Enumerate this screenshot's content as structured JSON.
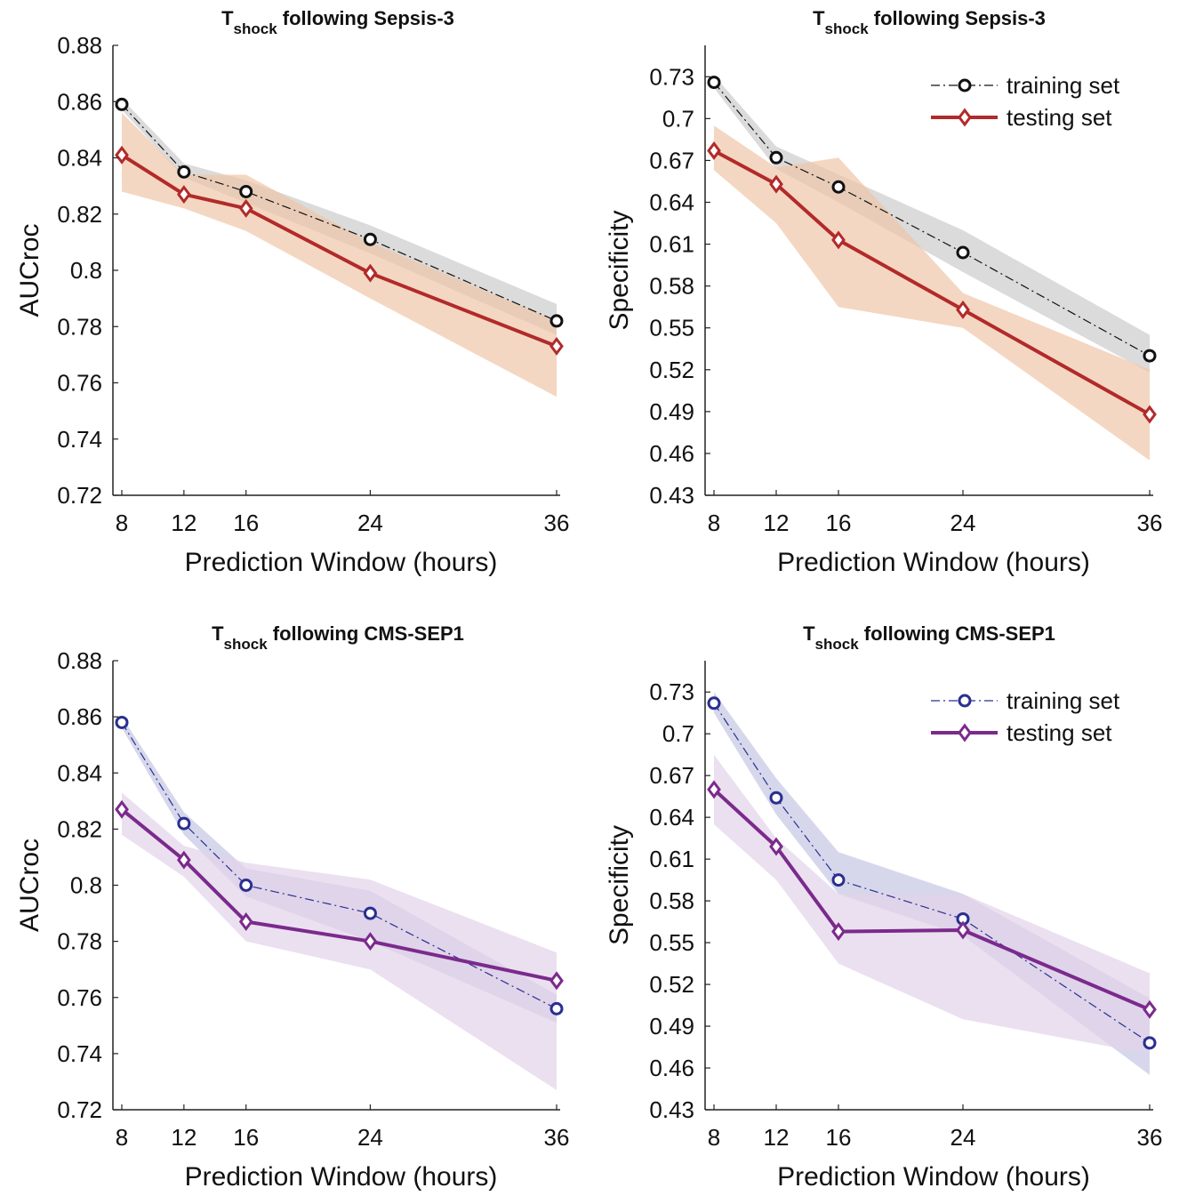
{
  "chart_data": [
    {
      "type": "line",
      "title": {
        "main": "T",
        "sub": "shock",
        "rest": " following Sepsis-3"
      },
      "xlabel": "Prediction Window (hours)",
      "ylabel": "AUCroc",
      "x": [
        8,
        12,
        16,
        24,
        36
      ],
      "xticks": [
        "8",
        "12",
        "16",
        "24",
        "36"
      ],
      "xlim": [
        8,
        36
      ],
      "ylim": [
        0.72,
        0.88
      ],
      "yticks": [
        0.72,
        0.74,
        0.76,
        0.78,
        0.8,
        0.82,
        0.84,
        0.86,
        0.88
      ],
      "yticklabels": [
        "0.72",
        "0.74",
        "0.76",
        "0.78",
        "0.8",
        "0.82",
        "0.84",
        "0.86",
        "0.88"
      ],
      "legend": null,
      "series": [
        {
          "name": "training set",
          "marker": "circle",
          "style": "dashdot",
          "color": "#111111",
          "band": "#cfcfcf",
          "values": [
            0.859,
            0.835,
            0.828,
            0.811,
            0.782
          ],
          "lower": [
            0.857,
            0.833,
            0.824,
            0.806,
            0.777
          ],
          "upper": [
            0.861,
            0.838,
            0.832,
            0.816,
            0.788
          ]
        },
        {
          "name": "testing set",
          "marker": "diamond",
          "style": "solid",
          "color": "#b22a2a",
          "band": "#efc6a8",
          "values": [
            0.841,
            0.827,
            0.822,
            0.799,
            0.773
          ],
          "lower": [
            0.828,
            0.822,
            0.814,
            0.79,
            0.755
          ],
          "upper": [
            0.856,
            0.834,
            0.834,
            0.81,
            0.782
          ]
        }
      ]
    },
    {
      "type": "line",
      "title": {
        "main": "T",
        "sub": "shock",
        "rest": " following Sepsis-3"
      },
      "xlabel": "Prediction Window (hours)",
      "ylabel": "Specificity",
      "x": [
        8,
        12,
        16,
        24,
        36
      ],
      "xticks": [
        "8",
        "12",
        "16",
        "24",
        "36"
      ],
      "xlim": [
        8,
        36
      ],
      "ylim": [
        0.43,
        0.7525
      ],
      "yticks": [
        0.43,
        0.46,
        0.49,
        0.52,
        0.55,
        0.58,
        0.61,
        0.64,
        0.67,
        0.7,
        0.73
      ],
      "yticklabels": [
        "0.43",
        "0.46",
        "0.49",
        "0.52",
        "0.55",
        "0.58",
        "0.61",
        "0.64",
        "0.67",
        "0.7",
        "0.73"
      ],
      "legend": "top-right",
      "series": [
        {
          "name": "training set",
          "marker": "circle",
          "style": "dashdot",
          "color": "#111111",
          "band": "#cfcfcf",
          "values": [
            0.726,
            0.672,
            0.651,
            0.604,
            0.53
          ],
          "lower": [
            0.722,
            0.664,
            0.64,
            0.59,
            0.518
          ],
          "upper": [
            0.731,
            0.68,
            0.66,
            0.62,
            0.545
          ]
        },
        {
          "name": "testing set",
          "marker": "diamond",
          "style": "solid",
          "color": "#b22a2a",
          "band": "#efc6a8",
          "values": [
            0.677,
            0.653,
            0.613,
            0.563,
            0.488
          ],
          "lower": [
            0.663,
            0.625,
            0.565,
            0.55,
            0.455
          ],
          "upper": [
            0.695,
            0.665,
            0.672,
            0.575,
            0.52
          ]
        }
      ]
    },
    {
      "type": "line",
      "title": {
        "main": "T",
        "sub": "shock",
        "rest": " following CMS-SEP1"
      },
      "xlabel": "Prediction Window (hours)",
      "ylabel": "AUCroc",
      "x": [
        8,
        12,
        16,
        24,
        36
      ],
      "xticks": [
        "8",
        "12",
        "16",
        "24",
        "36"
      ],
      "xlim": [
        8,
        36
      ],
      "ylim": [
        0.72,
        0.88
      ],
      "yticks": [
        0.72,
        0.74,
        0.76,
        0.78,
        0.8,
        0.82,
        0.84,
        0.86,
        0.88
      ],
      "yticklabels": [
        "0.72",
        "0.74",
        "0.76",
        "0.78",
        "0.8",
        "0.82",
        "0.84",
        "0.86",
        "0.88"
      ],
      "legend": null,
      "series": [
        {
          "name": "training set",
          "marker": "circle",
          "style": "dashdot",
          "color": "#2a2f8f",
          "band": "#c9c9e6",
          "values": [
            0.858,
            0.822,
            0.8,
            0.79,
            0.756
          ],
          "lower": [
            0.856,
            0.818,
            0.796,
            0.78,
            0.751
          ],
          "upper": [
            0.86,
            0.826,
            0.806,
            0.798,
            0.761
          ]
        },
        {
          "name": "testing set",
          "marker": "diamond",
          "style": "solid",
          "color": "#7b2a8c",
          "band": "#e2d3ea",
          "values": [
            0.827,
            0.809,
            0.787,
            0.78,
            0.766
          ],
          "lower": [
            0.818,
            0.803,
            0.78,
            0.77,
            0.727
          ],
          "upper": [
            0.833,
            0.814,
            0.808,
            0.802,
            0.776
          ]
        }
      ]
    },
    {
      "type": "line",
      "title": {
        "main": "T",
        "sub": "shock",
        "rest": " following CMS-SEP1"
      },
      "xlabel": "Prediction Window (hours)",
      "ylabel": "Specificity",
      "x": [
        8,
        12,
        16,
        24,
        36
      ],
      "xticks": [
        "8",
        "12",
        "16",
        "24",
        "36"
      ],
      "xlim": [
        8,
        36
      ],
      "ylim": [
        0.43,
        0.7525
      ],
      "yticks": [
        0.43,
        0.46,
        0.49,
        0.52,
        0.55,
        0.58,
        0.61,
        0.64,
        0.67,
        0.7,
        0.73
      ],
      "yticklabels": [
        "0.43",
        "0.46",
        "0.49",
        "0.52",
        "0.55",
        "0.58",
        "0.61",
        "0.64",
        "0.67",
        "0.7",
        "0.73"
      ],
      "legend": "top-right",
      "series": [
        {
          "name": "training set",
          "marker": "circle",
          "style": "dashdot",
          "color": "#2a2f8f",
          "band": "#c9c9e6",
          "values": [
            0.722,
            0.654,
            0.595,
            0.567,
            0.478
          ],
          "lower": [
            0.715,
            0.642,
            0.585,
            0.555,
            0.455
          ],
          "upper": [
            0.73,
            0.668,
            0.615,
            0.585,
            0.51
          ]
        },
        {
          "name": "testing set",
          "marker": "diamond",
          "style": "solid",
          "color": "#7b2a8c",
          "band": "#e2d3ea",
          "values": [
            0.66,
            0.619,
            0.558,
            0.559,
            0.502
          ],
          "lower": [
            0.635,
            0.595,
            0.535,
            0.495,
            0.47
          ],
          "upper": [
            0.685,
            0.625,
            0.585,
            0.585,
            0.528
          ]
        }
      ]
    }
  ]
}
